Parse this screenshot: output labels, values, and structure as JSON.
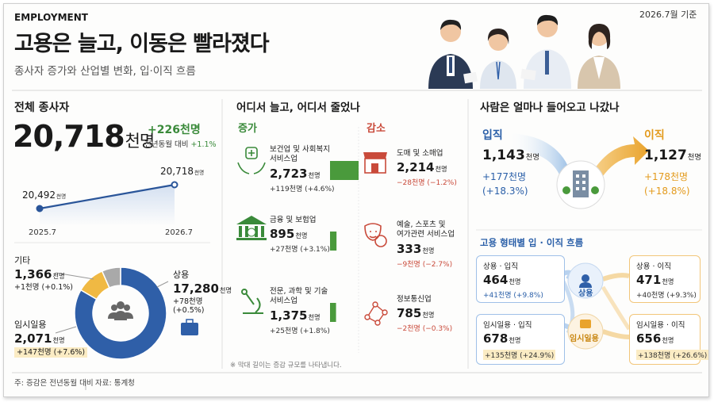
{
  "header": {
    "kicker": "EMPLOYMENT",
    "title": "고용은 늘고, 이동은 빨라졌다",
    "subtitle": "종사자 증가와 산업별 변화, 입·이직 흐름",
    "date": "2026.7월 기준"
  },
  "unit": "천명",
  "total": {
    "title": "전체 종사자",
    "change": "+226천명",
    "change_note": "전년동월 대비",
    "change_rate": "+1.1%",
    "chart_data": {
      "type": "line",
      "categories": [
        "2025.7",
        "2026.7"
      ],
      "values": [
        20492,
        20718
      ],
      "value_labels": [
        "20,492",
        "20,718"
      ],
      "color": "#2a5599"
    }
  },
  "composition": {
    "chart_data": {
      "type": "donut",
      "categories": [
        "상용",
        "임시일용",
        "기타"
      ],
      "values": [
        17280,
        2071,
        1366
      ],
      "value_labels": [
        "17,280",
        "2,071",
        "1,366"
      ],
      "changes": [
        "+78천명 (+0.5%)",
        "+147천명 (+7.6%)",
        "+1천명 (+0.1%)"
      ],
      "colors": [
        "#2f5fa8",
        "#f0b943",
        "#a9a9a9"
      ]
    }
  },
  "industry": {
    "title": "어디서 늘고, 어디서 줄었나",
    "groups": [
      {
        "label": "증가",
        "items": [
          {
            "name": "보건업 및 사회복지 서비스업",
            "value": "2,723",
            "change": "+119천명 (+4.6%)"
          },
          {
            "name": "금융 및 보험업",
            "value": "895",
            "change": "+27천명 (+3.1%)"
          },
          {
            "name": "전문, 과학 및 기술 서비스업",
            "value": "1,375",
            "change": "+25천명 (+1.8%)"
          }
        ],
        "chart_data": {
          "type": "bar",
          "values": [
            119,
            27,
            25
          ],
          "color": "#4a9a3c"
        }
      },
      {
        "label": "감소",
        "items": [
          {
            "name": "도매 및 소매업",
            "value": "2,214",
            "change": "−28천명 (−1.2%)"
          },
          {
            "name": "예술, 스포츠 및 여가관련 서비스업",
            "value": "333",
            "change": "−9천명 (−2.7%)"
          },
          {
            "name": "정보통신업",
            "value": "785",
            "change": "−2천명 (−0.3%)"
          }
        ]
      }
    ],
    "note": "※ 막대 길이는 증감 규모를 나타냅니다."
  },
  "flows": {
    "title": "사람은 얼마나 들어오고 나갔나",
    "hire": {
      "label": "입직",
      "value": "1,143",
      "change": "+177천명",
      "rate": "(+18.3%)"
    },
    "separation": {
      "label": "이직",
      "value": "1,127",
      "change": "+178천명",
      "rate": "(+18.8%)"
    },
    "by_type": {
      "title": "고용 형태별 입 · 이직 흐름",
      "center": [
        "상용",
        "임시일용"
      ],
      "boxes": [
        {
          "label": "상용 · 입직",
          "value": "464",
          "change": "+41천명 (+9.8%)"
        },
        {
          "label": "상용 · 이직",
          "value": "471",
          "change": "+40천명 (+9.3%)"
        },
        {
          "label": "임시일용 · 입직",
          "value": "678",
          "change": "+135천명 (+24.9%)"
        },
        {
          "label": "임시일용 · 이직",
          "value": "656",
          "change": "+138천명 (+26.6%)"
        }
      ]
    }
  },
  "footer": {
    "note": "주: 증감은 전년동월 대비",
    "source": "자료: 통계청"
  }
}
